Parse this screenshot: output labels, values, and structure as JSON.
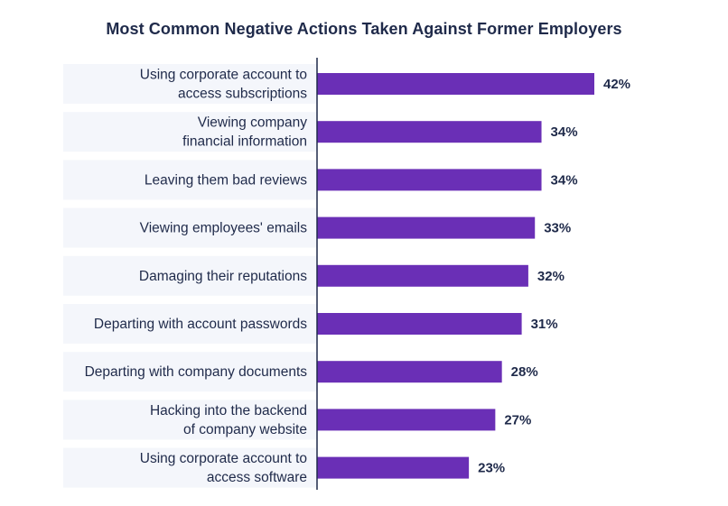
{
  "chart_data": {
    "type": "bar",
    "orientation": "horizontal",
    "title": "Most Common Negative Actions Taken Against Former Employers",
    "categories": [
      [
        "Using corporate account to",
        "access subscriptions"
      ],
      [
        "Viewing company",
        "financial information"
      ],
      [
        "Leaving them bad reviews"
      ],
      [
        "Viewing employees' emails"
      ],
      [
        "Damaging their reputations"
      ],
      [
        "Departing with account passwords"
      ],
      [
        "Departing with company documents"
      ],
      [
        "Hacking into the backend",
        "of company website"
      ],
      [
        "Using corporate account to",
        "access software"
      ]
    ],
    "values": [
      42,
      34,
      34,
      33,
      32,
      31,
      28,
      27,
      23
    ],
    "value_labels": [
      "42%",
      "34%",
      "34%",
      "33%",
      "32%",
      "31%",
      "28%",
      "27%",
      "23%"
    ],
    "unit": "%",
    "xlim": [
      0,
      42
    ],
    "bar_color": "#6a2fb6",
    "label_band_color": "#f4f6fb",
    "text_color": "#1f2a4a",
    "grid": false
  }
}
